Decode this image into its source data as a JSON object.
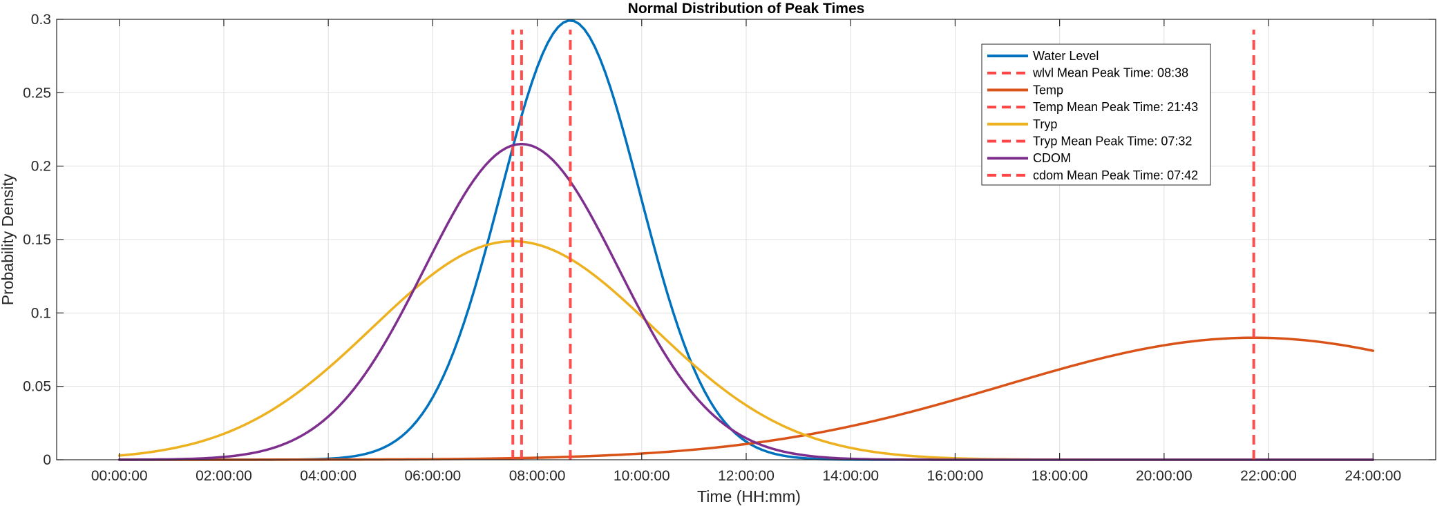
{
  "chart_data": {
    "type": "line",
    "title": "Normal Distribution of Peak Times",
    "xlabel": "Time (HH:mm)",
    "ylabel": "Probability Density",
    "xlim_hours": [
      -1.2,
      25.2
    ],
    "ylim": [
      0,
      0.3
    ],
    "x_tick_hours": [
      0,
      2,
      4,
      6,
      8,
      10,
      12,
      14,
      16,
      18,
      20,
      22,
      24
    ],
    "x_tick_labels": [
      "00:00:00",
      "02:00:00",
      "04:00:00",
      "06:00:00",
      "08:00:00",
      "10:00:00",
      "12:00:00",
      "14:00:00",
      "16:00:00",
      "18:00:00",
      "20:00:00",
      "22:00:00",
      "24:00:00"
    ],
    "y_ticks": [
      0,
      0.05,
      0.1,
      0.15,
      0.2,
      0.25,
      0.3
    ],
    "y_tick_labels": [
      "0",
      "0.05",
      "0.1",
      "0.15",
      "0.2",
      "0.25",
      "0.3"
    ],
    "grid": true,
    "legend_position": "top-right",
    "x_range_hours": [
      0,
      24
    ],
    "series": [
      {
        "name": "Water Level",
        "kind": "normal",
        "mean_hours": 8.633,
        "sd_hours": 1.333,
        "color": "#0072BD"
      },
      {
        "name": "Temp",
        "kind": "normal",
        "mean_hours": 21.717,
        "sd_hours": 4.8,
        "color": "#D95319"
      },
      {
        "name": "Tryp",
        "kind": "normal",
        "mean_hours": 7.533,
        "sd_hours": 2.68,
        "color": "#EDB120"
      },
      {
        "name": "CDOM",
        "kind": "normal",
        "mean_hours": 7.7,
        "sd_hours": 1.855,
        "color": "#7E2F8E"
      }
    ],
    "mean_lines": [
      {
        "name": "wlvl Mean Peak Time: 08:38",
        "x_hours": 8.633,
        "y_top": 0.293,
        "color": "#FF4545"
      },
      {
        "name": "Temp Mean Peak Time: 21:43",
        "x_hours": 21.717,
        "y_top": 0.293,
        "color": "#FF4545"
      },
      {
        "name": "Tryp Mean Peak Time: 07:32",
        "x_hours": 7.533,
        "y_top": 0.293,
        "color": "#FF4545"
      },
      {
        "name": "cdom Mean Peak Time: 07:42",
        "x_hours": 7.7,
        "y_top": 0.293,
        "color": "#FF4545"
      }
    ],
    "legend_order": [
      {
        "label": "Water Level",
        "style": "solid",
        "color": "#0072BD"
      },
      {
        "label": "wlvl Mean Peak Time: 08:38",
        "style": "dashed",
        "color": "#FF4545"
      },
      {
        "label": "Temp",
        "style": "solid",
        "color": "#D95319"
      },
      {
        "label": "Temp Mean Peak Time: 21:43",
        "style": "dashed",
        "color": "#FF4545"
      },
      {
        "label": "Tryp",
        "style": "solid",
        "color": "#EDB120"
      },
      {
        "label": "Tryp Mean Peak Time: 07:32",
        "style": "dashed",
        "color": "#FF4545"
      },
      {
        "label": "CDOM",
        "style": "solid",
        "color": "#7E2F8E"
      },
      {
        "label": "cdom Mean Peak Time: 07:42",
        "style": "dashed",
        "color": "#FF4545"
      }
    ]
  }
}
